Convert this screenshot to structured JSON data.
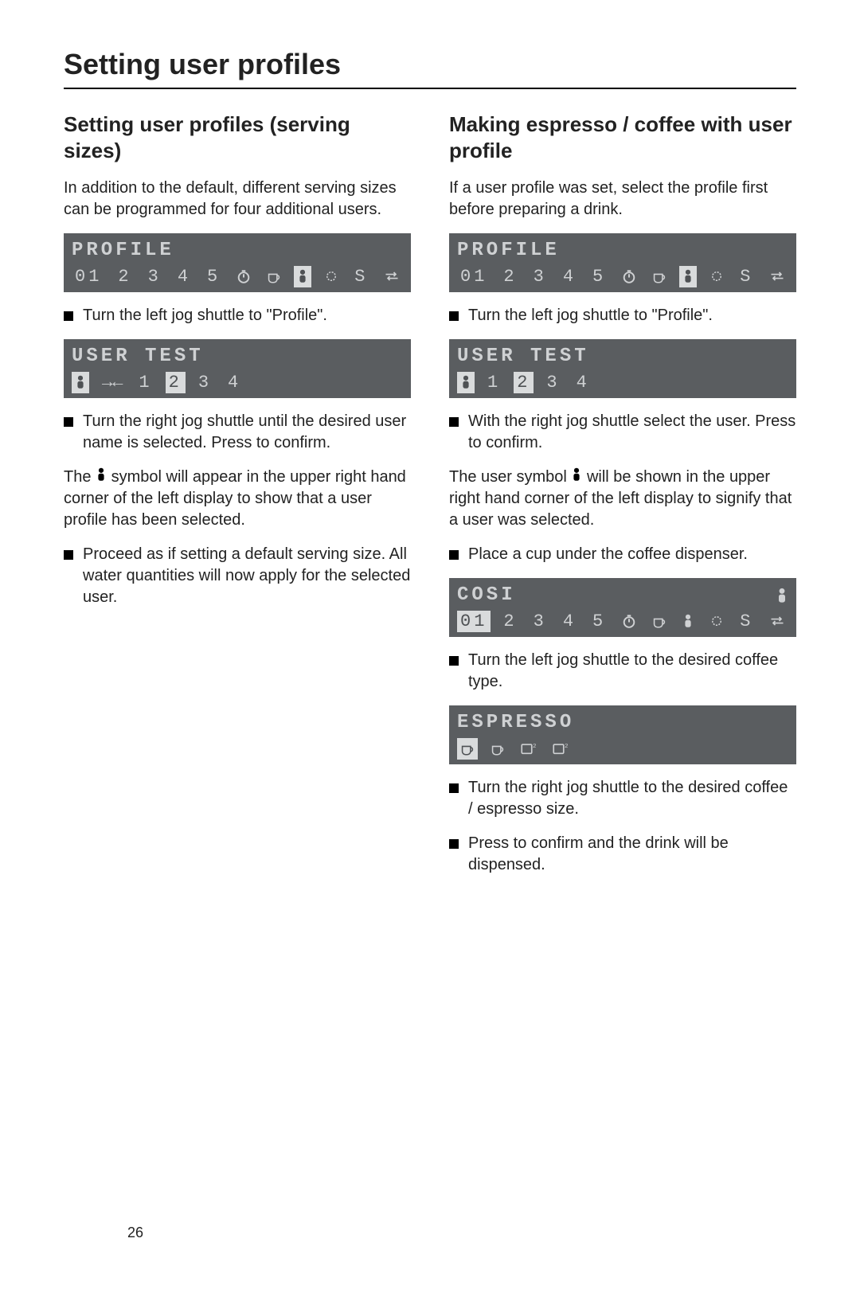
{
  "page_title": "Setting user profiles",
  "page_number": "26",
  "left": {
    "heading": "Setting user profiles (serving sizes)",
    "intro": "In addition to the default, different serving sizes can be programmed for four additional users.",
    "lcd_profile": {
      "title": "PROFILE",
      "items": [
        "01",
        "2",
        "3",
        "4",
        "5",
        "⏱",
        "☕",
        "👤",
        "⚙",
        "S",
        "⇄"
      ],
      "highlight_index": 7
    },
    "step1": "Turn the left jog shuttle to \"Profile\".",
    "lcd_usertest": {
      "title": "USER TEST",
      "items": [
        "👤",
        "→←",
        "1",
        "2",
        "3",
        "4"
      ],
      "highlight_indices": [
        0,
        3
      ]
    },
    "step2": "Turn the right jog shuttle until the desired user name is selected. Press to confirm.",
    "explainer_pre": "The ",
    "explainer_post": " symbol will appear in the upper right hand corner of the left display to show that a user profile has been selected.",
    "step3": "Proceed as if setting a default serving size. All water quantities will now apply for the selected user."
  },
  "right": {
    "heading": "Making espresso / coffee with user profile",
    "intro": "If a user profile was set, select the profile first before preparing a drink.",
    "lcd_profile": {
      "title": "PROFILE",
      "items": [
        "01",
        "2",
        "3",
        "4",
        "5",
        "⏱",
        "☕",
        "👤",
        "⚙",
        "S",
        "⇄"
      ],
      "highlight_index": 7
    },
    "step1": "Turn the left jog shuttle to \"Profile\".",
    "lcd_usertest": {
      "title": "USER TEST",
      "items": [
        "👤",
        "1",
        "2",
        "3",
        "4"
      ],
      "highlight_indices": [
        0,
        2
      ]
    },
    "step2": "With the right jog shuttle select the user. Press to confirm.",
    "explainer_pre": "The user symbol ",
    "explainer_post": " will be shown in the upper right hand corner of the left display to signify that a user was selected.",
    "step3": "Place a cup under the coffee dispenser.",
    "lcd_cosi": {
      "title": "COSI",
      "title_right_icon": "👤",
      "items": [
        "01",
        "2",
        "3",
        "4",
        "5",
        "⏱",
        "☕",
        "👤",
        "⚙",
        "S",
        "⇄"
      ],
      "highlight_index": 0
    },
    "step4": "Turn the left jog shuttle to the desired coffee type.",
    "lcd_espresso": {
      "title": "ESPRESSO",
      "cups": [
        "☕",
        "☕",
        "⎕²",
        "⎕²"
      ],
      "highlight_index": 0
    },
    "step5": "Turn the right jog shuttle to the desired coffee / espresso size.",
    "step6": "Press to confirm and the drink will be dispensed."
  },
  "colors": {
    "lcd_bg": "#5a5d60",
    "lcd_fg": "#cfd1d3",
    "lcd_hl_bg": "#d9dbdc",
    "lcd_hl_fg": "#4e5154"
  }
}
